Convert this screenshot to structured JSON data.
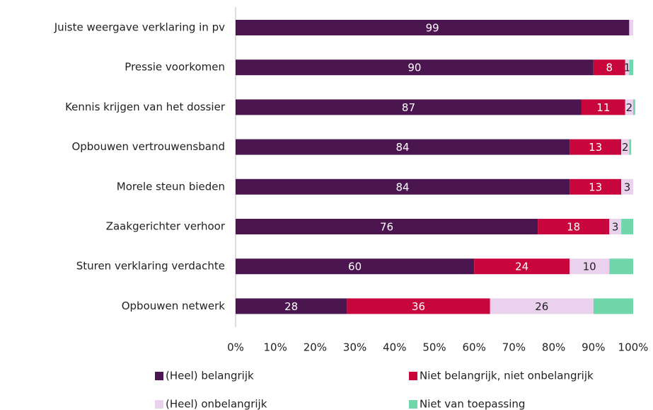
{
  "chart_data": {
    "type": "stacked-bar-horizontal",
    "categories": [
      "Juiste weergave verklaring in pv",
      "Pressie voorkomen",
      "Kennis krijgen van het dossier",
      "Opbouwen vertrouwensband",
      "Morele steun bieden",
      "Zaakgerichter verhoor",
      "Sturen verklaring verdachte",
      "Opbouwen netwerk"
    ],
    "series": [
      {
        "name": "(Heel) belangrijk",
        "color": "#4b1650",
        "label_color": "#ffffff",
        "values": [
          99,
          90,
          87,
          84,
          84,
          76,
          60,
          28
        ],
        "value_labels": [
          "99",
          "90",
          "87",
          "84",
          "84",
          "76",
          "60",
          "28"
        ]
      },
      {
        "name": "Niet belangrijk, niet onbelangrijk",
        "color": "#c8063c",
        "label_color": "#ffffff",
        "values": [
          0,
          8,
          11,
          13,
          13,
          18,
          24,
          36
        ],
        "value_labels": [
          null,
          "8",
          "11",
          "13",
          "13",
          "18",
          "24",
          "36"
        ]
      },
      {
        "name": "(Heel) onbelangrijk",
        "color": "#ead2ef",
        "label_color": "#222222",
        "values": [
          1,
          1,
          2,
          2,
          3,
          3,
          10,
          26
        ],
        "value_labels": [
          null,
          "1",
          "2",
          "2",
          "3",
          "3",
          "10",
          "26"
        ]
      },
      {
        "name": "Niet van toepassing",
        "color": "#6fd7a9",
        "label_color": "#222222",
        "values": [
          0,
          1,
          0.5,
          0.5,
          0,
          3,
          6,
          10
        ],
        "value_labels": [
          null,
          null,
          null,
          null,
          null,
          null,
          null,
          null
        ]
      }
    ],
    "xlim": [
      0,
      100
    ],
    "xticks": [
      {
        "value": 0,
        "label": "0%"
      },
      {
        "value": 10,
        "label": "10%"
      },
      {
        "value": 20,
        "label": "20%"
      },
      {
        "value": 30,
        "label": "30%"
      },
      {
        "value": 40,
        "label": "40%"
      },
      {
        "value": 50,
        "label": "50%"
      },
      {
        "value": 60,
        "label": "60%"
      },
      {
        "value": 70,
        "label": "70%"
      },
      {
        "value": 80,
        "label": "80%"
      },
      {
        "value": 90,
        "label": "90%"
      },
      {
        "value": 100,
        "label": "100%"
      }
    ]
  }
}
